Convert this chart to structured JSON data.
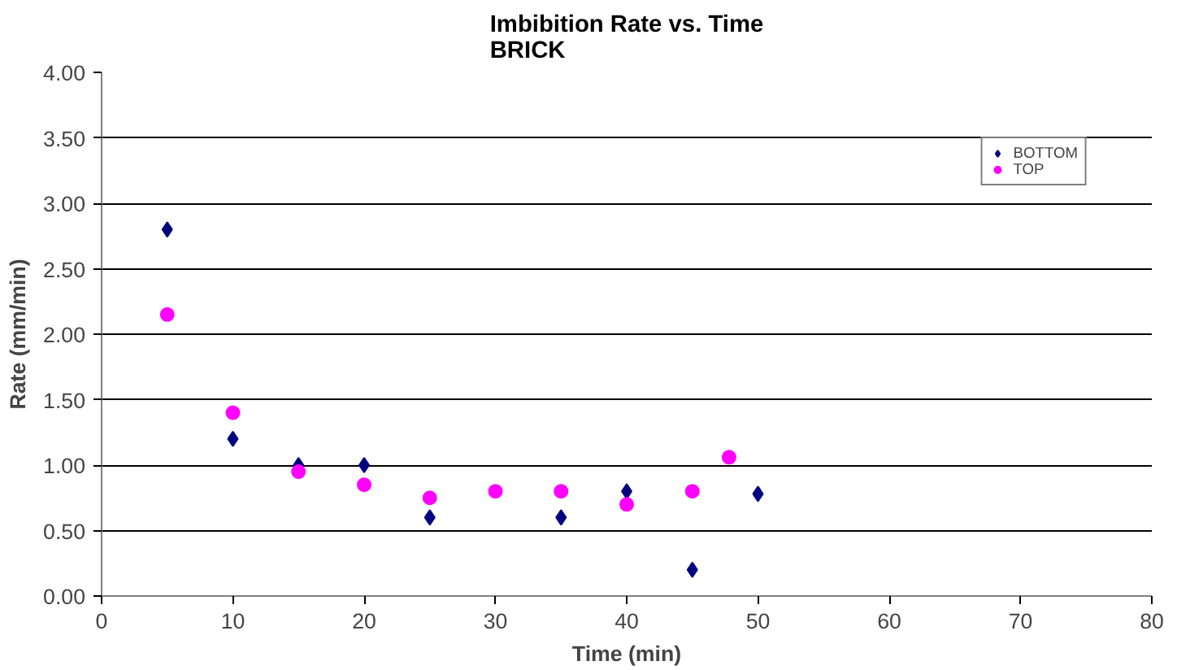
{
  "chart_data": {
    "type": "scatter",
    "title": "Imbibition Rate vs. Time\nBRICK",
    "xlabel": "Time (min)",
    "ylabel": "Rate (mm/min)",
    "xlim": [
      0,
      80
    ],
    "xticks": [
      0,
      10,
      20,
      30,
      40,
      50,
      60,
      70,
      80
    ],
    "ylim": [
      0,
      4
    ],
    "yticks": [
      {
        "value": 0,
        "label": "0.00"
      },
      {
        "value": 0.5,
        "label": "0.50"
      },
      {
        "value": 1,
        "label": "1.00"
      },
      {
        "value": 1.5,
        "label": "1.50"
      },
      {
        "value": 2,
        "label": "2.00"
      },
      {
        "value": 2.5,
        "label": "2.50"
      },
      {
        "value": 3,
        "label": "3.00"
      },
      {
        "value": 3.5,
        "label": "3.50"
      },
      {
        "value": 4,
        "label": "4.00"
      }
    ],
    "grid": "y",
    "legend": "top right",
    "series": [
      {
        "name": "BOTTOM",
        "color": "#000080",
        "marker": "diamond",
        "x": [
          5,
          10,
          15,
          20,
          25,
          35,
          40,
          45,
          50
        ],
        "values": [
          2.8,
          1.2,
          1.0,
          1.0,
          0.6,
          0.6,
          0.8,
          0.2,
          0.78
        ]
      },
      {
        "name": "TOP",
        "color": "#ff00ff",
        "marker": "circle",
        "x": [
          5,
          10,
          15,
          20,
          25,
          30,
          35,
          40,
          45,
          47.8
        ],
        "values": [
          2.15,
          1.4,
          0.95,
          0.85,
          0.75,
          0.8,
          0.8,
          0.7,
          0.8,
          1.06
        ]
      }
    ]
  }
}
